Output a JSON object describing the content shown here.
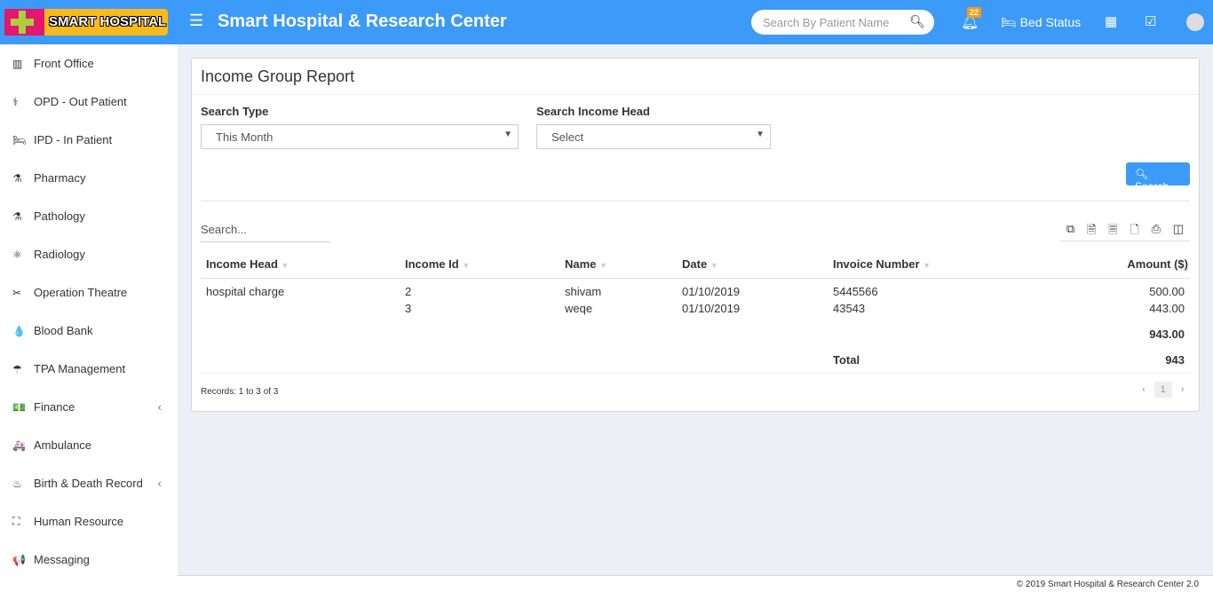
{
  "header": {
    "logo_text": "SMART HOSPITAL",
    "title": "Smart Hospital & Research Center",
    "search_placeholder": "Search By Patient Name",
    "notification_count": "22",
    "bed_status": "Bed Status"
  },
  "sidebar": {
    "items": [
      {
        "label": "Front Office",
        "icon": "▥"
      },
      {
        "label": "OPD - Out Patient",
        "icon": "⚕"
      },
      {
        "label": "IPD - In Patient",
        "icon": "🛏"
      },
      {
        "label": "Pharmacy",
        "icon": "⚗"
      },
      {
        "label": "Pathology",
        "icon": "⚗"
      },
      {
        "label": "Radiology",
        "icon": "⚛"
      },
      {
        "label": "Operation Theatre",
        "icon": "✂"
      },
      {
        "label": "Blood Bank",
        "icon": "💧"
      },
      {
        "label": "TPA Management",
        "icon": "☂"
      },
      {
        "label": "Finance",
        "icon": "💵",
        "chevron": "‹"
      },
      {
        "label": "Ambulance",
        "icon": "🚑"
      },
      {
        "label": "Birth & Death Record",
        "icon": "♨",
        "chevron": "‹"
      },
      {
        "label": "Human Resource",
        "icon": "⛶"
      },
      {
        "label": "Messaging",
        "icon": "📢"
      }
    ]
  },
  "report": {
    "title": "Income Group Report",
    "search_type_label": "Search Type",
    "search_type_value": "This Month",
    "income_head_label": "Search Income Head",
    "income_head_value": "Select",
    "search_button": "Search",
    "table_search_placeholder": "Search...",
    "columns": [
      "Income Head",
      "Income Id",
      "Name",
      "Date",
      "Invoice Number",
      "Amount ($)"
    ],
    "rows": [
      {
        "head": "hospital charge",
        "id": "2",
        "name": "shivam",
        "date": "01/10/2019",
        "invoice": "5445566",
        "amount": "500.00"
      },
      {
        "head": "",
        "id": "3",
        "name": "weqe",
        "date": "01/10/2019",
        "invoice": "43543",
        "amount": "443.00"
      }
    ],
    "subtotal": "943.00",
    "total_label": "Total",
    "total": "943",
    "records": "Records: 1 to 3 of 3",
    "page": "1"
  },
  "footer": "© 2019 Smart Hospital & Research Center 2.0"
}
